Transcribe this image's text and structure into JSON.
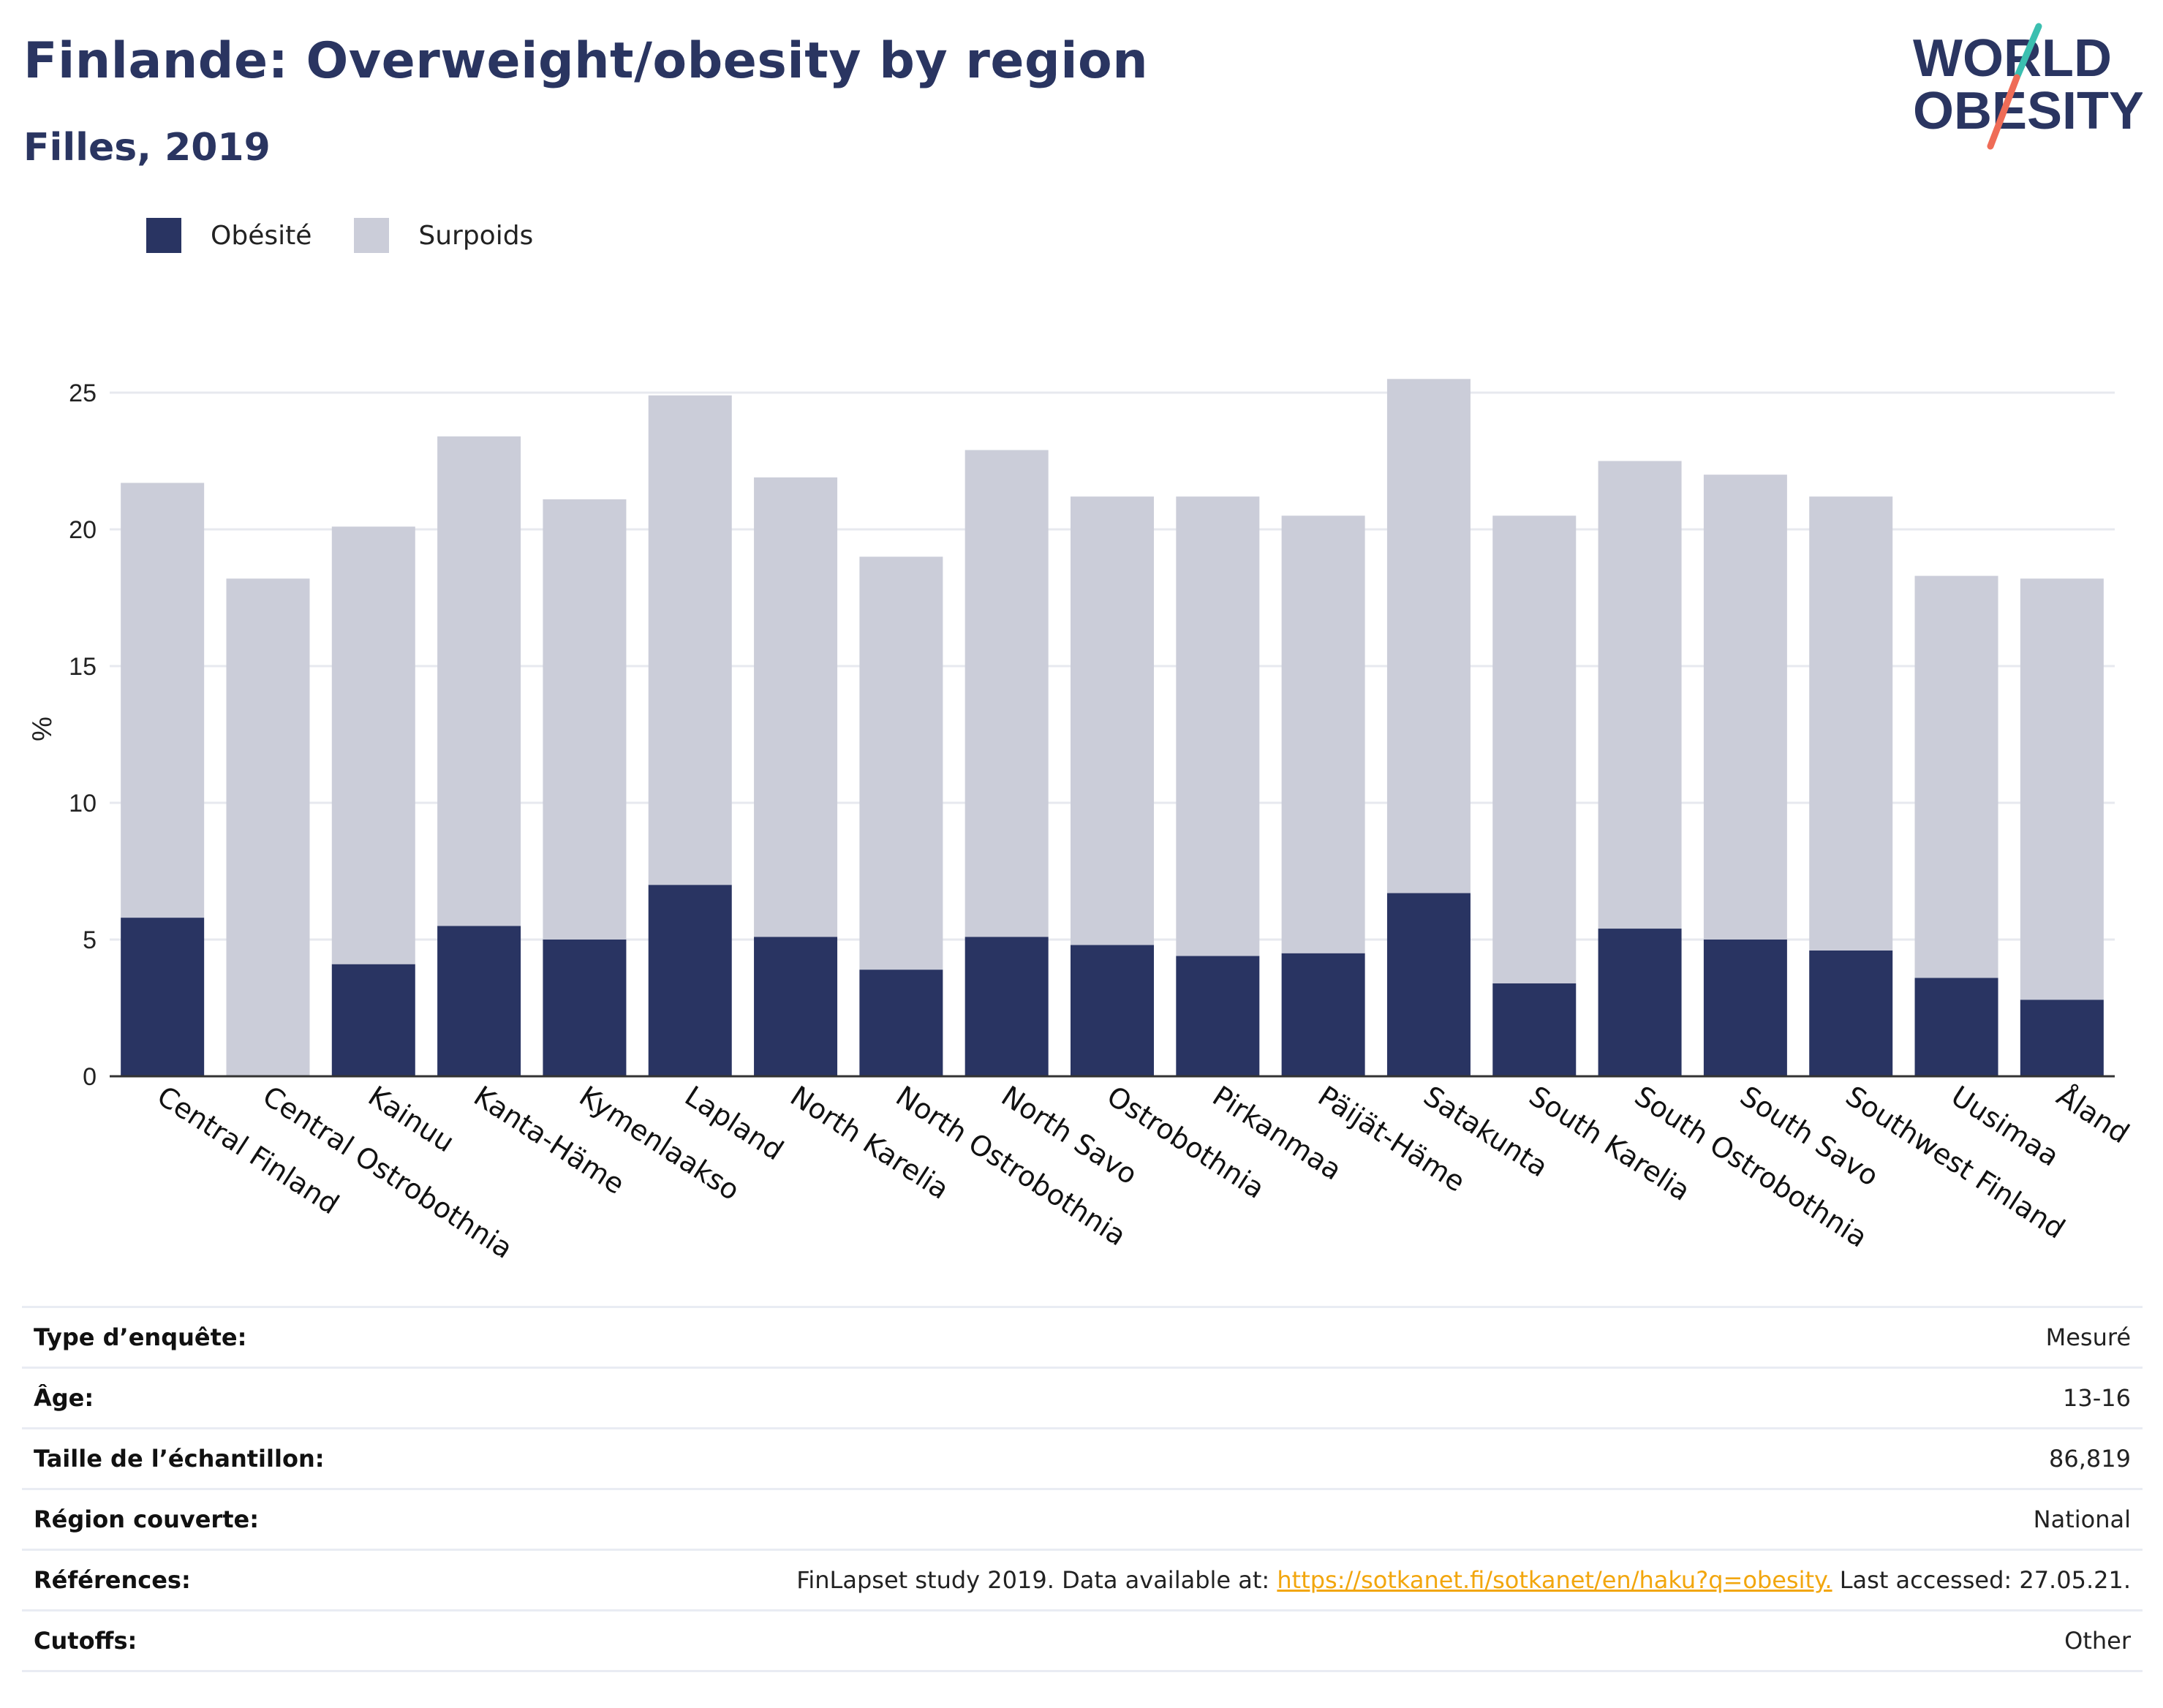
{
  "title": "Finlande: Overweight/obesity by region",
  "subtitle": "Filles, 2019",
  "logo": {
    "line1": "WORLD",
    "line2": "OBESITY"
  },
  "legend": [
    {
      "label": "Obésité",
      "color": "#293462"
    },
    {
      "label": "Surpoids",
      "color": "#cbcdd9"
    }
  ],
  "chart_data": {
    "type": "bar",
    "stacked": true,
    "ylabel": "%",
    "ylim": [
      0,
      25.5
    ],
    "yticks": [
      0,
      5,
      10,
      15,
      20,
      25
    ],
    "grid": true,
    "legend_position": "top-left",
    "categories": [
      "Central Finland",
      "Central Ostrobothnia",
      "Kainuu",
      "Kanta-Häme",
      "Kymenlaakso",
      "Lapland",
      "North Karelia",
      "North Ostrobothnia",
      "North Savo",
      "Ostrobothnia",
      "Pirkanmaa",
      "Päijät-Häme",
      "Satakunta",
      "South Karelia",
      "South Ostrobothnia",
      "South Savo",
      "Southwest Finland",
      "Uusimaa",
      "Åland"
    ],
    "series": [
      {
        "name": "Obésité",
        "color": "#293462",
        "values": [
          5.8,
          0,
          4.1,
          5.5,
          5.0,
          7.0,
          5.1,
          3.9,
          5.1,
          4.8,
          4.4,
          4.5,
          6.7,
          3.4,
          5.4,
          5.0,
          4.6,
          3.6,
          2.8
        ]
      },
      {
        "name": "Surpoids",
        "color": "#cbcdd9",
        "values": [
          15.9,
          18.2,
          16.0,
          17.9,
          16.1,
          17.9,
          16.8,
          15.1,
          17.8,
          16.4,
          16.8,
          16.0,
          18.8,
          17.1,
          17.1,
          17.0,
          16.6,
          14.7,
          15.4
        ]
      }
    ]
  },
  "info": {
    "survey_type": {
      "label": "Type d’enquête:",
      "value": "Mesuré"
    },
    "age": {
      "label": "Âge:",
      "value": "13-16"
    },
    "sample_size": {
      "label": "Taille de l’échantillon:",
      "value": "86,819"
    },
    "region": {
      "label": "Région couverte:",
      "value": "National"
    },
    "references": {
      "label": "Références:",
      "prefix": "FinLapset study 2019. Data available at: ",
      "link": "https://sotkanet.fi/sotkanet/en/haku?q=obesity.",
      "suffix": " Last accessed: 27.05.21."
    },
    "cutoffs": {
      "label": "Cutoffs:",
      "value": "Other"
    }
  }
}
